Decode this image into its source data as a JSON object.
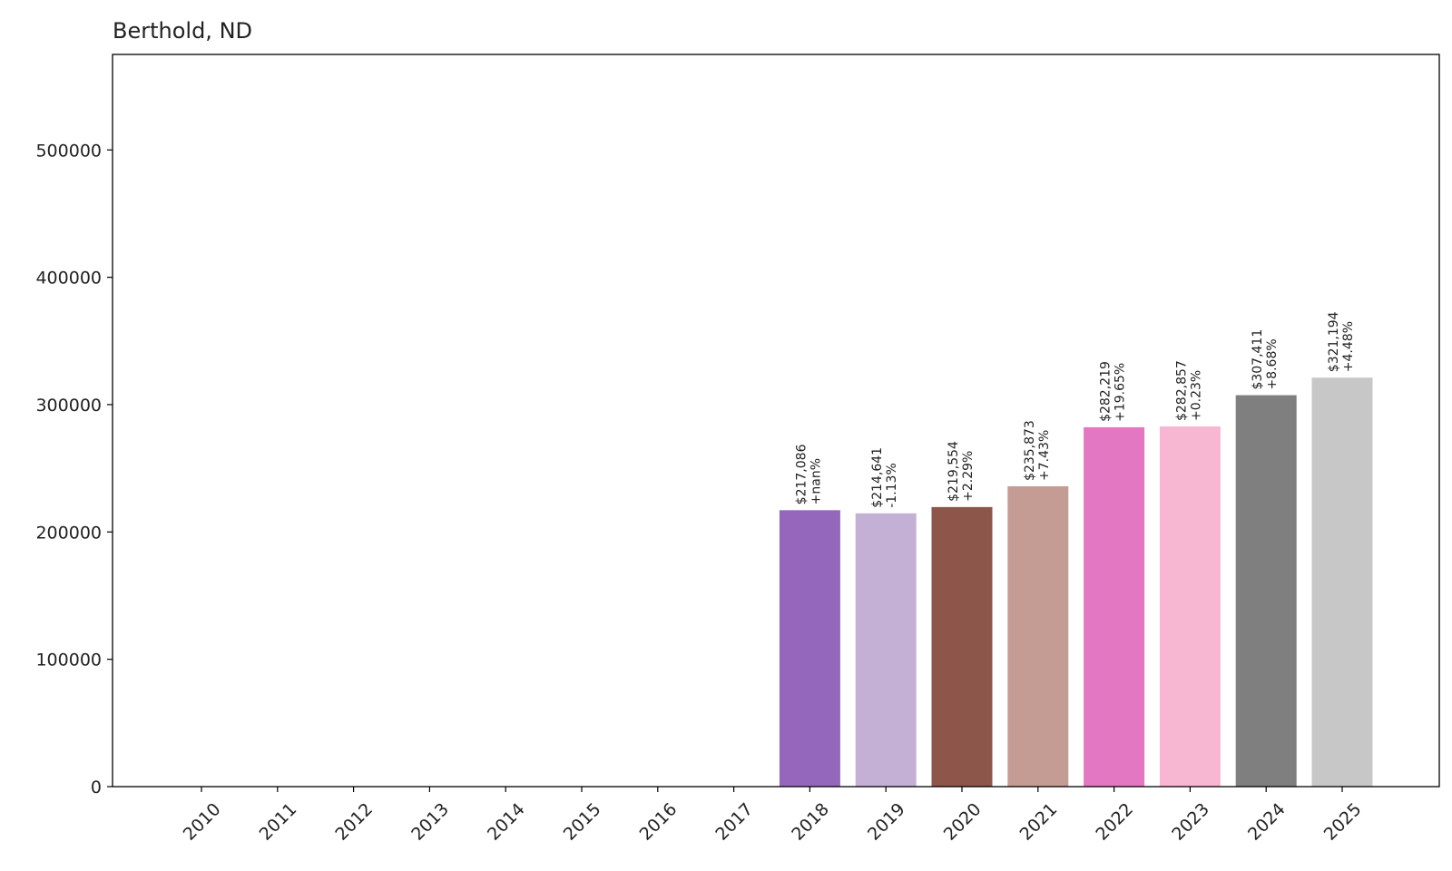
{
  "chart_data": {
    "type": "bar",
    "title": "Berthold, ND",
    "xlabel": "",
    "ylabel": "",
    "categories": [
      "2010",
      "2011",
      "2012",
      "2013",
      "2014",
      "2015",
      "2016",
      "2017",
      "2018",
      "2019",
      "2020",
      "2021",
      "2022",
      "2023",
      "2024",
      "2025"
    ],
    "values": [
      0,
      0,
      0,
      0,
      0,
      0,
      0,
      0,
      217086,
      214641,
      219554,
      235873,
      282219,
      282857,
      307411,
      321194
    ],
    "value_labels": [
      "",
      "",
      "",
      "",
      "",
      "",
      "",
      "",
      "$217,086",
      "$214,641",
      "$219,554",
      "$235,873",
      "$282,219",
      "$282,857",
      "$307,411",
      "$321,194"
    ],
    "change_labels": [
      "",
      "",
      "",
      "",
      "",
      "",
      "",
      "",
      "+nan%",
      "-1.13%",
      "+2.29%",
      "+7.43%",
      "+19.65%",
      "+0.23%",
      "+8.68%",
      "+4.48%"
    ],
    "colors": [
      "#1f77b4",
      "#aec7e8",
      "#ff7f0e",
      "#ffbb78",
      "#2ca02c",
      "#98df8a",
      "#d62728",
      "#ff9896",
      "#9467bd",
      "#c5b0d5",
      "#8c564b",
      "#c49c94",
      "#e377c2",
      "#f7b6d2",
      "#7f7f7f",
      "#c7c7c7"
    ],
    "yticks": [
      0,
      100000,
      200000,
      300000,
      400000,
      500000
    ],
    "ylim": [
      0,
      575000
    ],
    "grid": false,
    "legend": "none"
  }
}
